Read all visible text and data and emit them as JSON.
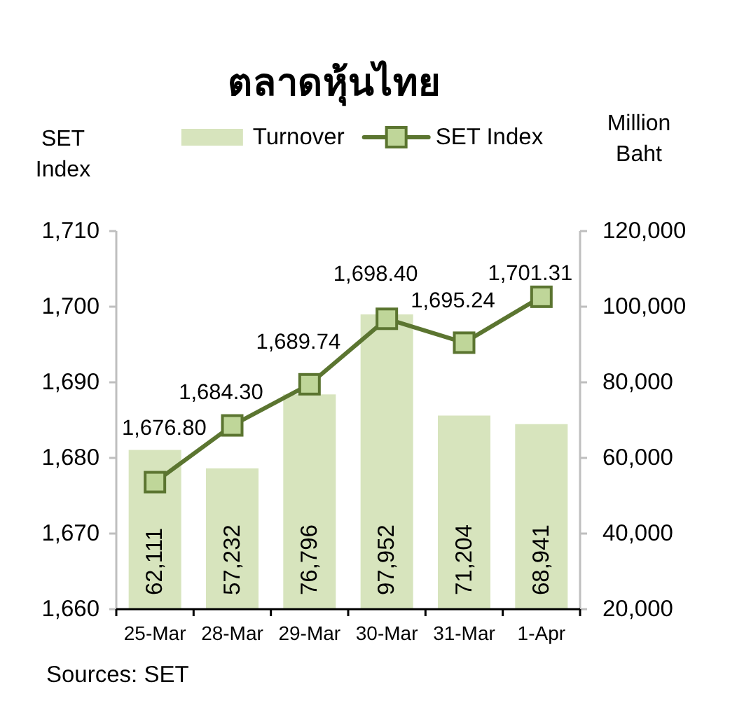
{
  "chart_data": {
    "type": "bar",
    "title": "ตลาดหุ้นไทย",
    "ylabel": "SET Index",
    "y2label": "Million Baht",
    "categories": [
      "25-Mar",
      "28-Mar",
      "29-Mar",
      "30-Mar",
      "31-Mar",
      "1-Apr"
    ],
    "series": [
      {
        "name": "Turnover",
        "type": "bar",
        "axis": "y2",
        "color": "#d7e4bd",
        "values": [
          62111,
          57232,
          76796,
          97952,
          71204,
          68941
        ],
        "value_labels": [
          "62,111",
          "57,232",
          "76,796",
          "97,952",
          "71,204",
          "68,941"
        ]
      },
      {
        "name": "SET Index",
        "type": "line",
        "axis": "y",
        "color": "#5b7530",
        "values": [
          1676.8,
          1684.3,
          1689.74,
          1698.4,
          1695.24,
          1701.31
        ],
        "value_labels": [
          "1,676.80",
          "1,684.30",
          "1,689.74",
          "1,698.40",
          "1,695.24",
          "1,701.31"
        ]
      }
    ],
    "ylim": [
      1660,
      1710
    ],
    "yticks": [
      {
        "value": 1660,
        "label": "1,660"
      },
      {
        "value": 1670,
        "label": "1,670"
      },
      {
        "value": 1680,
        "label": "1,680"
      },
      {
        "value": 1690,
        "label": "1,690"
      },
      {
        "value": 1700,
        "label": "1,700"
      },
      {
        "value": 1710,
        "label": "1,710"
      }
    ],
    "y2lim": [
      20000,
      120000
    ],
    "y2ticks": [
      {
        "value": 20000,
        "label": "20,000"
      },
      {
        "value": 40000,
        "label": "40,000"
      },
      {
        "value": 60000,
        "label": "60,000"
      },
      {
        "value": 80000,
        "label": "80,000"
      },
      {
        "value": 100000,
        "label": "100,000"
      },
      {
        "value": 120000,
        "label": "120,000"
      }
    ],
    "legend": "top",
    "marker": "square",
    "line_style": "solid",
    "annotations": [
      "Sources: SET"
    ]
  }
}
